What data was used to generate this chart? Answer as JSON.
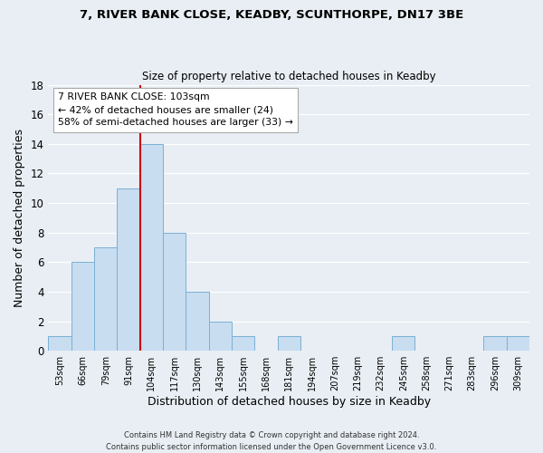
{
  "title_line1": "7, RIVER BANK CLOSE, KEADBY, SCUNTHORPE, DN17 3BE",
  "title_line2": "Size of property relative to detached houses in Keadby",
  "xlabel": "Distribution of detached houses by size in Keadby",
  "ylabel": "Number of detached properties",
  "bar_labels": [
    "53sqm",
    "66sqm",
    "79sqm",
    "91sqm",
    "104sqm",
    "117sqm",
    "130sqm",
    "143sqm",
    "155sqm",
    "168sqm",
    "181sqm",
    "194sqm",
    "207sqm",
    "219sqm",
    "232sqm",
    "245sqm",
    "258sqm",
    "271sqm",
    "283sqm",
    "296sqm",
    "309sqm"
  ],
  "bar_values": [
    1,
    6,
    7,
    11,
    14,
    8,
    4,
    2,
    1,
    0,
    1,
    0,
    0,
    0,
    0,
    1,
    0,
    0,
    0,
    1,
    1
  ],
  "bar_color": "#c8ddf0",
  "bar_edge_color": "#7ab0d4",
  "marker_bar_index": 4,
  "marker_color": "#cc0000",
  "ylim": [
    0,
    18
  ],
  "yticks": [
    0,
    2,
    4,
    6,
    8,
    10,
    12,
    14,
    16,
    18
  ],
  "annotation_line1": "7 RIVER BANK CLOSE: 103sqm",
  "annotation_line2": "← 42% of detached houses are smaller (24)",
  "annotation_line3": "58% of semi-detached houses are larger (33) →",
  "footer_line1": "Contains HM Land Registry data © Crown copyright and database right 2024.",
  "footer_line2": "Contains public sector information licensed under the Open Government Licence v3.0.",
  "bg_color": "#e8eef4",
  "grid_color": "#ffffff",
  "annotation_box_color": "#ffffff",
  "annotation_box_edge": "#aaaaaa",
  "title1_fontsize": 9.5,
  "title2_fontsize": 8.5,
  "bar_width": 1.0
}
